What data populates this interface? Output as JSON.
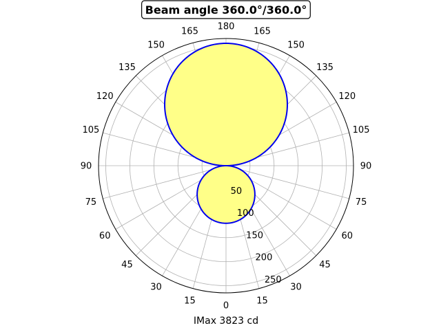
{
  "chart_data": {
    "type": "polar-area",
    "title": "Beam angle 360.0°/360.0°",
    "xlabel": "IMax 3823 cd",
    "angle_tick_labels": [
      {
        "angle": 0,
        "label": "180"
      },
      {
        "angle": 15,
        "label": "165"
      },
      {
        "angle": 30,
        "label": "150"
      },
      {
        "angle": 45,
        "label": "135"
      },
      {
        "angle": 60,
        "label": "120"
      },
      {
        "angle": 75,
        "label": "105"
      },
      {
        "angle": 90,
        "label": "90"
      },
      {
        "angle": 105,
        "label": "75"
      },
      {
        "angle": 120,
        "label": "60"
      },
      {
        "angle": 135,
        "label": "45"
      },
      {
        "angle": 150,
        "label": "30"
      },
      {
        "angle": 165,
        "label": "15"
      },
      {
        "angle": 180,
        "label": "0"
      },
      {
        "angle": 195,
        "label": "15"
      },
      {
        "angle": 210,
        "label": "30"
      },
      {
        "angle": 225,
        "label": "45"
      },
      {
        "angle": 240,
        "label": "60"
      },
      {
        "angle": 255,
        "label": "75"
      },
      {
        "angle": 270,
        "label": "90"
      },
      {
        "angle": 285,
        "label": "105"
      },
      {
        "angle": 300,
        "label": "120"
      },
      {
        "angle": 315,
        "label": "135"
      },
      {
        "angle": 330,
        "label": "150"
      },
      {
        "angle": 345,
        "label": "165"
      }
    ],
    "radial_ticks": [
      50,
      100,
      150,
      200,
      250
    ],
    "radial_tick_labels": [
      "50",
      "100",
      "150",
      "200",
      "250"
    ],
    "rmax": 265,
    "grid": true,
    "series": [
      {
        "upper_lobe_max": 255,
        "lower_lobe_max": 120,
        "line_color": "#0000ee",
        "fill_color": "#ffff88"
      }
    ]
  }
}
